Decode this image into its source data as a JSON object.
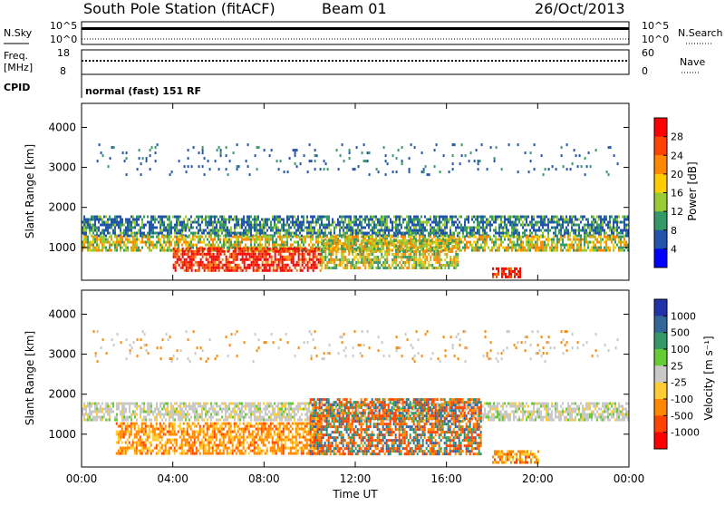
{
  "header": {
    "station": "South Pole Station (fitACF)",
    "beam": "Beam 01",
    "date": "26/Oct/2013"
  },
  "top_panels": {
    "nsky_label": "N.Sky",
    "nsky_ticks": [
      "10^5",
      "10^0"
    ],
    "nsearch_label": "N.Search",
    "nsearch_ticks": [
      "10^5",
      "10^0"
    ],
    "freq_label_line1": "Freq.",
    "freq_label_line2": "[MHz]",
    "freq_ticks": [
      "18",
      "8"
    ],
    "nave_label": "Nave",
    "nave_ticks": [
      "60",
      "0"
    ],
    "cpid_label": "CPID",
    "cpid_text": "normal (fast) 151 RF"
  },
  "chart_data": [
    {
      "type": "heatmap",
      "panel": "power",
      "ylabel": "Slant Range [km]",
      "y_ticks": [
        "1000",
        "2000",
        "3000",
        "4000"
      ],
      "ylim": [
        180,
        4600
      ],
      "x_ticks": [
        "00:00",
        "04:00",
        "08:00",
        "12:00",
        "16:00",
        "20:00",
        "00:00"
      ],
      "colorbar_label": "Power [dB]",
      "colorbar_ticks": [
        "28",
        "24",
        "20",
        "16",
        "12",
        "8",
        "4"
      ],
      "colorbar_colors": [
        "#ff0000",
        "#ff4400",
        "#ff8800",
        "#ffcc00",
        "#99cc33",
        "#339966",
        "#2255aa",
        "#0000ff"
      ],
      "bands": [
        {
          "start_h": 0.0,
          "end_h": 24.0,
          "low_km": 1300,
          "high_km": 1800,
          "level": "low"
        },
        {
          "start_h": 0.0,
          "end_h": 24.0,
          "low_km": 900,
          "high_km": 1300,
          "level": "mid"
        },
        {
          "start_h": 4.0,
          "end_h": 10.5,
          "low_km": 450,
          "high_km": 1000,
          "level": "high"
        },
        {
          "start_h": 10.5,
          "end_h": 16.5,
          "low_km": 500,
          "high_km": 1200,
          "level": "mid"
        },
        {
          "start_h": 18.0,
          "end_h": 19.2,
          "low_km": 250,
          "high_km": 500,
          "level": "high"
        },
        {
          "start_h": 0.5,
          "end_h": 23.5,
          "low_km": 2800,
          "high_km": 3600,
          "level": "sparse"
        }
      ]
    },
    {
      "type": "heatmap",
      "panel": "velocity",
      "ylabel": "Slant Range [km]",
      "y_ticks": [
        "1000",
        "2000",
        "3000",
        "4000"
      ],
      "ylim": [
        180,
        4600
      ],
      "x_ticks": [
        "00:00",
        "04:00",
        "08:00",
        "12:00",
        "16:00",
        "20:00",
        "00:00"
      ],
      "xlabel": "Time UT",
      "colorbar_label": "Velocity [m s⁻¹]",
      "colorbar_ticks": [
        "1000",
        "500",
        "100",
        "25",
        "-25",
        "-100",
        "-500",
        "-1000"
      ],
      "colorbar_colors": [
        "#2233aa",
        "#336699",
        "#339966",
        "#66cc33",
        "#c8c8c8",
        "#ffcc33",
        "#ff8800",
        "#ff4400",
        "#ff0000"
      ],
      "bands": [
        {
          "start_h": 0.0,
          "end_h": 24.0,
          "low_km": 1350,
          "high_km": 1800,
          "level": "gray"
        },
        {
          "start_h": 1.5,
          "end_h": 10.5,
          "low_km": 500,
          "high_km": 1300,
          "level": "orange"
        },
        {
          "start_h": 10.0,
          "end_h": 17.5,
          "low_km": 500,
          "high_km": 1900,
          "level": "mixed"
        },
        {
          "start_h": 18.0,
          "end_h": 20.0,
          "low_km": 300,
          "high_km": 600,
          "level": "orange"
        },
        {
          "start_h": 0.5,
          "end_h": 23.5,
          "low_km": 2800,
          "high_km": 3600,
          "level": "sparse"
        }
      ]
    }
  ]
}
